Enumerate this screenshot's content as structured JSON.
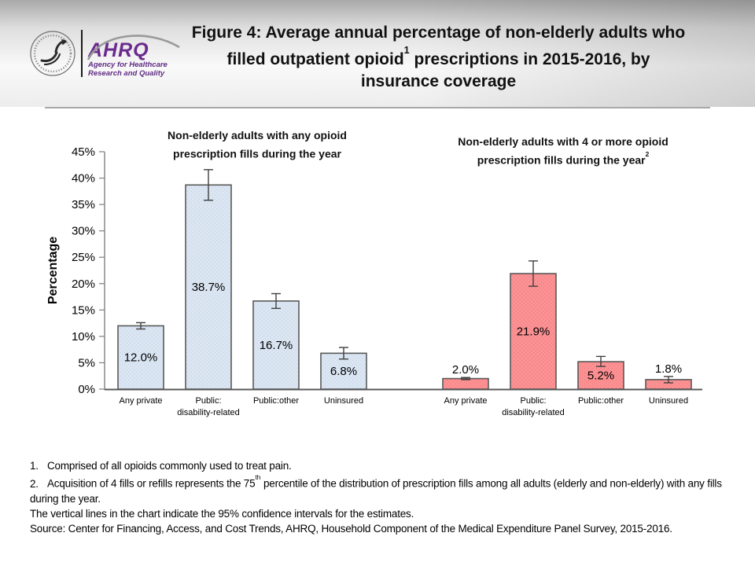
{
  "header": {
    "logo": {
      "org_abbrev": "AHRQ",
      "tagline_line1": "Agency for Healthcare",
      "tagline_line2": "Research and Quality"
    },
    "title_line1": "Figure 4: Average annual percentage of non-elderly adults who",
    "title_line2_pre": "filled outpatient opioid",
    "title_line2_sup": "1",
    "title_line2_post": " prescriptions in 2015-2016, by",
    "title_line3": "insurance coverage"
  },
  "chart_data": {
    "type": "bar",
    "ylabel": "Percentage",
    "ylim": [
      0,
      45
    ],
    "ytick_step": 5,
    "ytick_suffix": "%",
    "grid": false,
    "legend_position": "none",
    "ci_note": "Vertical lines are 95% confidence intervals",
    "categories": [
      "Any private",
      "Public:\ndisability-related",
      "Public:other",
      "Uninsured"
    ],
    "axis_color": "#808080",
    "baseline_color": "#595959",
    "error_bar_color": "#404040",
    "panels": [
      {
        "title": "Non-elderly adults with any opioid prescription fills during the year",
        "title_line1": "Non-elderly adults with any opioid",
        "title_line2": "prescription fills during the year",
        "title_sup": "",
        "bar_fill": "#dce6f2",
        "bar_dot": "#c2d3e8",
        "bar_border": "#595959",
        "values": [
          12.0,
          38.7,
          16.7,
          6.8
        ],
        "labels": [
          "12.0%",
          "38.7%",
          "16.7%",
          "6.8%"
        ],
        "ci_low": [
          11.4,
          35.8,
          15.3,
          5.7
        ],
        "ci_high": [
          12.6,
          41.6,
          18.1,
          7.9
        ],
        "label_placement": [
          "inside",
          "inside",
          "inside",
          "inside"
        ]
      },
      {
        "title": "Non-elderly adults with 4 or more opioid prescription fills during the year",
        "title_line1": "Non-elderly adults with 4 or more opioid",
        "title_line2": "prescription fills during the year",
        "title_sup": "2",
        "bar_fill": "#fc9294",
        "bar_dot": "#ee7577",
        "bar_border": "#595959",
        "values": [
          2.0,
          21.9,
          5.2,
          1.8
        ],
        "labels": [
          "2.0%",
          "21.9%",
          "5.2%",
          "1.8%"
        ],
        "ci_low": [
          1.8,
          19.5,
          4.3,
          1.2
        ],
        "ci_high": [
          2.2,
          24.3,
          6.2,
          2.4
        ],
        "label_placement": [
          "above",
          "inside",
          "inside",
          "above"
        ]
      }
    ]
  },
  "footnotes": {
    "item1_num": "1.",
    "item1_text": "Comprised of all opioids commonly used to treat pain.",
    "item2_num": "2.",
    "item2_pre": "Acquisition of 4 fills or refills represents the 75",
    "item2_sup": "th",
    "item2_post": " percentile of the distribution of prescription fills among all adults (elderly and non-elderly) with any fills during the year.",
    "ci_line": "The vertical lines in the chart indicate the 95% confidence intervals for the estimates.",
    "source_line": "Source: Center for Financing, Access, and Cost Trends, AHRQ, Household Component of the Medical Expenditure Panel Survey, 2015-2016."
  }
}
